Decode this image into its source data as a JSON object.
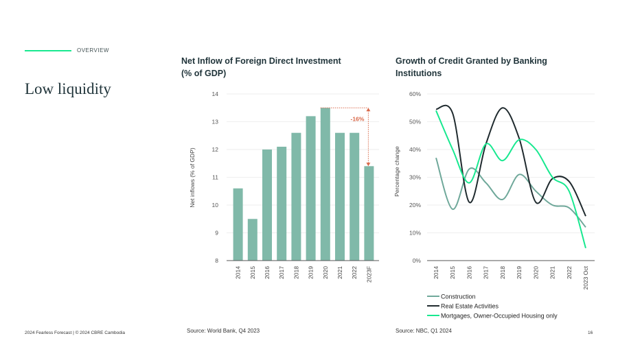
{
  "section_label": "OVERVIEW",
  "title": "Low liquidity",
  "footer": "2024 Fearless Forecast | © 2024 CBRE Cambodia",
  "page_number": "16",
  "colors": {
    "accent": "#17e88f",
    "bar": "#80b9a9",
    "annotation": "#d9694a",
    "construction": "#6fa89a",
    "real_estate": "#1f2a2e",
    "mortgages": "#17e88f"
  },
  "chart_data": [
    {
      "type": "bar",
      "title": "Net Inflow of Foreign Direct Investment (% of GDP)",
      "title_lines": [
        "Net Inflow of Foreign Direct Investment",
        "(% of GDP)"
      ],
      "ylabel": "Net inflows (% of GDP)",
      "xlabel": "",
      "ylim": [
        8,
        14
      ],
      "yticks": [
        "8",
        "9",
        "10",
        "11",
        "12",
        "13",
        "14"
      ],
      "grid": true,
      "categories": [
        "2014",
        "2015",
        "2016",
        "2017",
        "2018",
        "2019",
        "2020",
        "2021",
        "2022",
        "2023F"
      ],
      "values": [
        10.6,
        9.5,
        12.0,
        12.1,
        12.6,
        13.2,
        13.5,
        12.6,
        12.6,
        11.4
      ],
      "annotation": {
        "label": "-16%",
        "from": "2020",
        "to": "2023F"
      },
      "source": "Source: World Bank, Q4 2023"
    },
    {
      "type": "line",
      "title": "Growth of Credit Granted by Banking Institutions",
      "title_lines": [
        "Growth of Credit Granted by Banking",
        "Institutions"
      ],
      "ylabel": "Percentage change",
      "xlabel": "",
      "ylim": [
        0,
        60
      ],
      "yticks": [
        "0%",
        "10%",
        "20%",
        "30%",
        "40%",
        "50%",
        "60%"
      ],
      "grid": true,
      "legend_placement": "bottom",
      "categories": [
        "2014",
        "2015",
        "2016",
        "2017",
        "2018",
        "2019",
        "2020",
        "2021",
        "2022",
        "2023 Oct"
      ],
      "series": [
        {
          "name": "Construction",
          "color": "#6fa89a",
          "values": [
            37,
            18.5,
            33,
            28,
            22,
            31,
            25,
            20,
            19,
            12
          ]
        },
        {
          "name": "Real Estate Activities",
          "color": "#1f2a2e",
          "values": [
            54.5,
            53,
            21,
            42,
            55,
            44,
            21,
            29.5,
            28.5,
            16
          ]
        },
        {
          "name": "Mortgages, Owner-Occupied Housing only",
          "color": "#17e88f",
          "values": [
            54,
            40,
            28,
            42,
            36,
            43.5,
            40,
            30,
            25,
            4.5
          ]
        }
      ],
      "source": "Source: NBC, Q1 2024"
    }
  ]
}
